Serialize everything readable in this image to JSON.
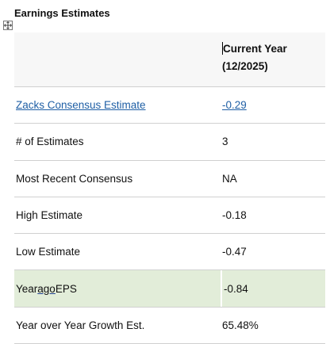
{
  "title": "Earnings Estimates",
  "header": {
    "col2_line1": "Current Year",
    "col2_line2": "(12/2025)"
  },
  "rows": [
    {
      "label": "Zacks Consensus Estimate",
      "value": "-0.29",
      "link": true
    },
    {
      "label": "# of Estimates",
      "value": "3"
    },
    {
      "label": "Most Recent Consensus",
      "value": "NA"
    },
    {
      "label": "High Estimate",
      "value": "-0.18"
    },
    {
      "label": "Low Estimate",
      "value": "-0.47"
    },
    {
      "label_pre": "Year ",
      "label_ago": "ago",
      "label_post": " EPS",
      "value": "-0.84"
    },
    {
      "label": "Year over Year Growth Est.",
      "value": "65.48%"
    }
  ],
  "colors": {
    "link": "#1f5fa5",
    "highlight_row": "#e2edd9",
    "alt_row": "#f7f7f7"
  },
  "icons": [
    "table-move-handle-icon"
  ]
}
